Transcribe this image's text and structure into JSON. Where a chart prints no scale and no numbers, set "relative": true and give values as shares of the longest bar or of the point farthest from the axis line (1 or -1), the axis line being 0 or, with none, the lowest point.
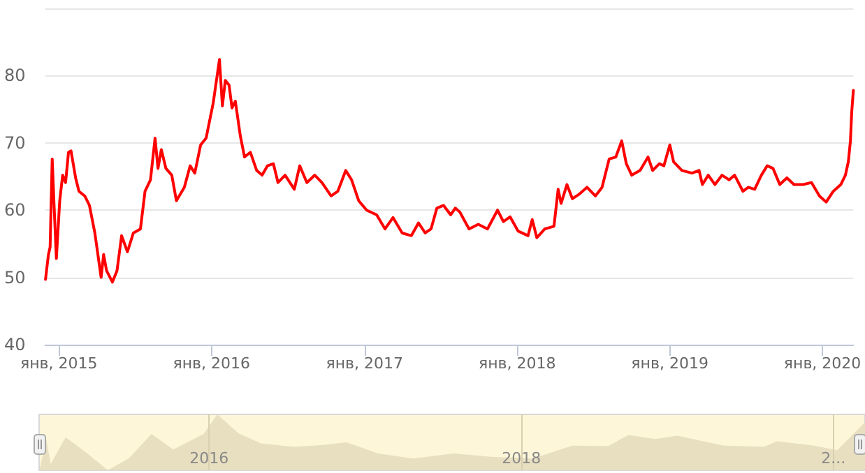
{
  "chart_data": [
    {
      "type": "line",
      "color": "#ff0000",
      "x": [
        "2014-11-30",
        "2014-12-07",
        "2014-12-11",
        "2014-12-16",
        "2014-12-20",
        "2014-12-26",
        "2015-01-03",
        "2015-01-10",
        "2015-01-17",
        "2015-01-24",
        "2015-01-30",
        "2015-02-10",
        "2015-02-18",
        "2015-03-04",
        "2015-03-15",
        "2015-03-28",
        "2015-04-12",
        "2015-04-18",
        "2015-04-25",
        "2015-05-09",
        "2015-05-20",
        "2015-05-31",
        "2015-06-14",
        "2015-06-28",
        "2015-07-15",
        "2015-07-26",
        "2015-08-08",
        "2015-08-19",
        "2015-08-26",
        "2015-09-03",
        "2015-09-14",
        "2015-09-28",
        "2015-10-09",
        "2015-10-28",
        "2015-11-11",
        "2015-11-22",
        "2015-12-06",
        "2015-12-19",
        "2016-01-05",
        "2016-01-20",
        "2016-01-27",
        "2016-02-03",
        "2016-02-12",
        "2016-02-19",
        "2016-02-27",
        "2016-03-10",
        "2016-03-20",
        "2016-04-03",
        "2016-04-18",
        "2016-05-01",
        "2016-05-14",
        "2016-05-28",
        "2016-06-08",
        "2016-06-25",
        "2016-07-17",
        "2016-07-30",
        "2016-08-16",
        "2016-09-04",
        "2016-09-21",
        "2016-10-13",
        "2016-10-29",
        "2016-11-17",
        "2016-12-01",
        "2016-12-18",
        "2017-01-06",
        "2017-01-30",
        "2017-02-19",
        "2017-03-10",
        "2017-04-01",
        "2017-04-23",
        "2017-05-10",
        "2017-05-26",
        "2017-06-09",
        "2017-06-23",
        "2017-07-09",
        "2017-07-26",
        "2017-08-06",
        "2017-08-17",
        "2017-09-08",
        "2017-09-30",
        "2017-10-22",
        "2017-11-15",
        "2017-11-29",
        "2017-12-15",
        "2018-01-03",
        "2018-01-27",
        "2018-02-06",
        "2018-02-17",
        "2018-03-08",
        "2018-03-30",
        "2018-04-09",
        "2018-04-16",
        "2018-04-30",
        "2018-05-13",
        "2018-05-30",
        "2018-06-17",
        "2018-07-07",
        "2018-07-23",
        "2018-08-09",
        "2018-08-25",
        "2018-09-08",
        "2018-09-19",
        "2018-10-02",
        "2018-10-22",
        "2018-11-10",
        "2018-11-21",
        "2018-12-07",
        "2018-12-18",
        "2019-01-01",
        "2019-01-10",
        "2019-01-30",
        "2019-02-23",
        "2019-03-12",
        "2019-03-20",
        "2019-04-03",
        "2019-04-19",
        "2019-05-06",
        "2019-05-23",
        "2019-06-05",
        "2019-06-25",
        "2019-07-08",
        "2019-07-23",
        "2019-08-08",
        "2019-08-22",
        "2019-09-05",
        "2019-09-21",
        "2019-10-08",
        "2019-10-25",
        "2019-11-16",
        "2019-12-06",
        "2019-12-25",
        "2020-01-10",
        "2020-01-27",
        "2020-02-14",
        "2020-02-25",
        "2020-03-03",
        "2020-03-08",
        "2020-03-11",
        "2020-03-15"
      ],
      "values": [
        49.7,
        53.4,
        54.5,
        67.6,
        61.4,
        52.8,
        61.4,
        65.2,
        64.1,
        68.6,
        68.8,
        64.8,
        62.8,
        62.1,
        60.7,
        56.6,
        50,
        53.4,
        51,
        49.3,
        51,
        56.2,
        53.8,
        56.6,
        57.2,
        62.8,
        64.5,
        70.7,
        66.2,
        69,
        66.2,
        65.2,
        61.4,
        63.4,
        66.6,
        65.5,
        69.7,
        70.7,
        75.9,
        82.4,
        75.5,
        79.3,
        78.6,
        75.2,
        76.2,
        71,
        67.9,
        68.6,
        65.9,
        65.2,
        66.6,
        66.9,
        64.1,
        65.2,
        63.1,
        66.6,
        64.1,
        65.2,
        64.1,
        62.1,
        62.8,
        65.9,
        64.5,
        61.4,
        60,
        59.3,
        57.2,
        58.9,
        56.6,
        56.2,
        58.1,
        56.6,
        57.2,
        60.3,
        60.7,
        59.3,
        60.3,
        59.7,
        57.2,
        57.9,
        57.2,
        60,
        58.3,
        59,
        56.9,
        56.2,
        58.6,
        55.9,
        57.2,
        57.6,
        63.1,
        61,
        63.8,
        61.7,
        62.4,
        63.4,
        62.1,
        63.4,
        67.6,
        67.9,
        70.3,
        66.9,
        65.2,
        65.9,
        67.9,
        65.9,
        66.9,
        66.6,
        69.7,
        67.2,
        65.9,
        65.5,
        65.9,
        63.8,
        65.2,
        63.8,
        65.2,
        64.5,
        65.2,
        62.8,
        63.4,
        63.1,
        65.2,
        66.6,
        66.2,
        63.8,
        64.8,
        63.8,
        63.8,
        64.1,
        62.1,
        61.2,
        62.8,
        63.8,
        65.2,
        67.2,
        70.3,
        74.5,
        77.8
      ],
      "xlim": [
        "2014-11-29",
        "2020-03-15"
      ],
      "xticks": [
        {
          "value": "2015-01-01",
          "label": "янв, 2015"
        },
        {
          "value": "2016-01-01",
          "label": "янв, 2016"
        },
        {
          "value": "2017-01-01",
          "label": "янв, 2017"
        },
        {
          "value": "2018-01-01",
          "label": "янв, 2018"
        },
        {
          "value": "2019-01-01",
          "label": "янв, 2019"
        },
        {
          "value": "2020-01-01",
          "label": "янв, 2020"
        }
      ],
      "ylim": [
        40,
        90
      ],
      "yticks": [
        40,
        50,
        60,
        70,
        80,
        {
          "value": 90,
          "label": null
        }
      ],
      "grid": "y",
      "marker": "none",
      "line_style": "solid"
    },
    {
      "type": "area",
      "color": "#e8dfc0",
      "relative": true,
      "tick_labels": "x",
      "grid": "x",
      "x": [
        "2014-11-30",
        "2014-12-16",
        "2014-12-26",
        "2015-01-30",
        "2015-03-15",
        "2015-05-09",
        "2015-06-28",
        "2015-08-19",
        "2015-10-09",
        "2015-12-19",
        "2016-01-20",
        "2016-03-10",
        "2016-05-01",
        "2016-07-17",
        "2016-09-21",
        "2016-11-17",
        "2017-01-30",
        "2017-04-23",
        "2017-07-26",
        "2017-10-22",
        "2018-01-27",
        "2018-04-30",
        "2018-07-23",
        "2018-09-08",
        "2018-11-10",
        "2019-01-01",
        "2019-04-19",
        "2019-07-23",
        "2019-08-22",
        "2019-11-16",
        "2020-01-10",
        "2020-03-15"
      ],
      "values": [
        0.01,
        0.55,
        0.11,
        0.59,
        0.34,
        0,
        0.22,
        0.65,
        0.37,
        0.65,
        1,
        0.66,
        0.48,
        0.42,
        0.45,
        0.5,
        0.3,
        0.21,
        0.3,
        0.24,
        0.21,
        0.44,
        0.43,
        0.63,
        0.56,
        0.62,
        0.44,
        0.42,
        0.52,
        0.44,
        0.36,
        0.86
      ],
      "xlim": [
        "2014-11-29",
        "2020-03-15"
      ],
      "xticks": [
        {
          "value": "2016-01-01",
          "label": "2016"
        },
        {
          "value": "2018-01-01",
          "label": "2018"
        },
        {
          "value": "2020-01-01",
          "label": "2..."
        }
      ]
    }
  ]
}
